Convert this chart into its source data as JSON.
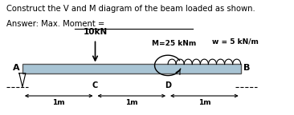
{
  "title_line1": "Construct the V and M diagram of the beam loaded as shown.",
  "title_line2": "Answer: Max. Moment = ",
  "beam_color": "#a8c4d4",
  "beam_edge_color": "#555555",
  "point_A_label": "A",
  "point_B_label": "B",
  "point_C_label": "C",
  "point_D_label": "D",
  "dim_1m_labels": [
    "1m",
    "1m",
    "1m"
  ],
  "load_10kN_label": "10kN",
  "moment_label": "M=25 kNm",
  "dist_load_label": "w = 5 kN/m",
  "bg_color": "#ffffff",
  "bx0": 0.08,
  "bx1": 0.9,
  "by": 0.4,
  "bh": 0.08
}
